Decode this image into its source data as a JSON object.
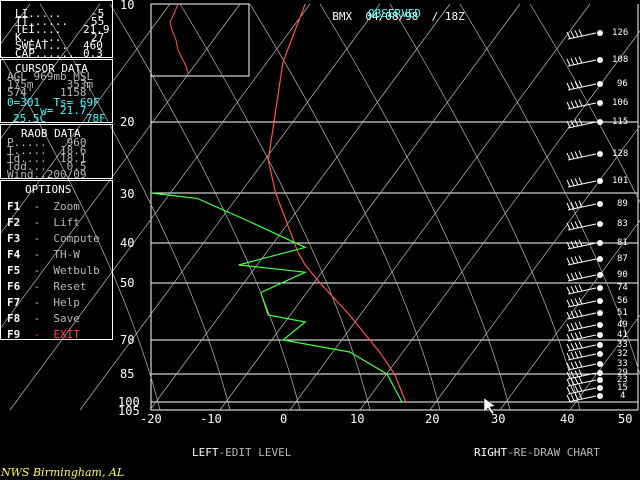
{
  "header": {
    "station": "BMX",
    "date": "04/08/98",
    "time": "18Z",
    "mode": "OBSERVED"
  },
  "indices": {
    "li_label": "LI.....",
    "li_value": "-5",
    "tt_label": "TT......",
    "tt_value": "55",
    "tei_label": "TEI....",
    "tei_value": "21.9",
    "k_label": "K......",
    "k_value": "27",
    "sweat_label": "SWEAT...",
    "sweat_value": "460",
    "cap_label": "CAP......",
    "cap_value": "0.3"
  },
  "cursor_data": {
    "title": "CURSOR DATA",
    "agl": "AGL 969mb MSL",
    "line2": "175m     353m",
    "line3": "574'    1158'",
    "line4": "0=301  Ts= 69F",
    "line5": "     w= 21.7",
    "line6": "25.5C      78F"
  },
  "raob_data": {
    "title": "RAOB DATA",
    "p": "P.....   960",
    "t": "T.....  18.6",
    "td": "Td....  18.1",
    "tdd": "Tdd...   0.5",
    "wind": "Wind..200/09"
  },
  "options": {
    "title": "OPTIONS",
    "items": [
      {
        "key": "F1",
        "label": "Zoom"
      },
      {
        "key": "F2",
        "label": "Lift"
      },
      {
        "key": "F3",
        "label": "Compute"
      },
      {
        "key": "F4",
        "label": "TH-W"
      },
      {
        "key": "F5",
        "label": "Wetbulb"
      },
      {
        "key": "F6",
        "label": "Reset"
      },
      {
        "key": "F7",
        "label": "Help"
      },
      {
        "key": "F8",
        "label": "Save"
      },
      {
        "key": "F9",
        "label": "EXIT"
      }
    ]
  },
  "bottom": {
    "left_key": "LEFT",
    "left_action": "-EDIT LEVEL",
    "right_key": "RIGHT",
    "right_action": "-RE-DRAW CHART"
  },
  "station_label": "NWS Birmingham, AL",
  "colors": {
    "temp": "#ff5050",
    "dewpoint": "#40ff40",
    "grid": "#ffffff",
    "accent": "#3fffff",
    "exit": "#ff4040"
  },
  "chart_data": {
    "type": "line",
    "x_ticks": [
      "-20",
      "-10",
      "0",
      "10",
      "20",
      "30",
      "40",
      "50"
    ],
    "y_ticks": [
      "10",
      "20",
      "30",
      "40",
      "50",
      "70",
      "85",
      "100",
      "105"
    ],
    "xlim": [
      -20,
      50
    ],
    "series": [
      {
        "name": "temperature",
        "points": [
          [
            16.5,
            100
          ],
          [
            15,
            85
          ],
          [
            13,
            75
          ],
          [
            9,
            60
          ],
          [
            5,
            50
          ],
          [
            3,
            45
          ],
          [
            2,
            42
          ],
          [
            -1,
            30
          ],
          [
            -2,
            25
          ],
          [
            0,
            15
          ],
          [
            3,
            10
          ]
        ]
      },
      {
        "name": "dewpoint",
        "points": [
          [
            16,
            100
          ],
          [
            14,
            85
          ],
          [
            9,
            75
          ],
          [
            0,
            70
          ],
          [
            3,
            63
          ],
          [
            -2,
            60
          ],
          [
            -3,
            53
          ],
          [
            3,
            47
          ],
          [
            -6,
            45
          ],
          [
            3,
            41
          ],
          [
            -5,
            35
          ],
          [
            -12,
            31
          ],
          [
            -20,
            30
          ]
        ]
      }
    ],
    "wind_labels": [
      "126",
      "108",
      "96",
      "106",
      "115",
      "128",
      "101",
      "89",
      "83",
      "81",
      "87",
      "90",
      "74",
      "56",
      "51",
      "49",
      "41",
      "33",
      "32",
      "33",
      "29",
      "23",
      "15",
      "4"
    ]
  }
}
